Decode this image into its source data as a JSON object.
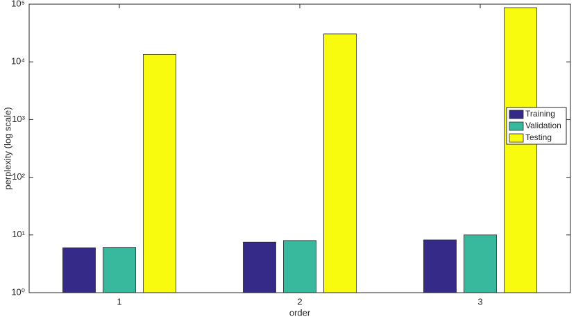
{
  "chart_data": {
    "type": "bar",
    "log_scale": true,
    "grid": false,
    "legend": "right",
    "x_label": "order",
    "y_label": "perplexity (log scale)",
    "categories": [
      "1",
      "2",
      "3"
    ],
    "series": [
      {
        "name": "Training",
        "color": "#352a87",
        "values": [
          6.0,
          7.5,
          8.2
        ]
      },
      {
        "name": "Validation",
        "color": "#38b99e",
        "values": [
          6.1,
          8.0,
          10
        ]
      },
      {
        "name": "Testing",
        "color": "#f9fb0e",
        "values": [
          13500,
          30500,
          87000
        ]
      }
    ],
    "ylim": [
      1,
      100000
    ],
    "yticks": [
      {
        "value": 1,
        "label": "10⁰"
      },
      {
        "value": 10,
        "label": "10¹"
      },
      {
        "value": 100,
        "label": "10²"
      },
      {
        "value": 1000,
        "label": "10³"
      },
      {
        "value": 10000,
        "label": "10⁴"
      },
      {
        "value": 100000,
        "label": "10⁵"
      }
    ]
  }
}
